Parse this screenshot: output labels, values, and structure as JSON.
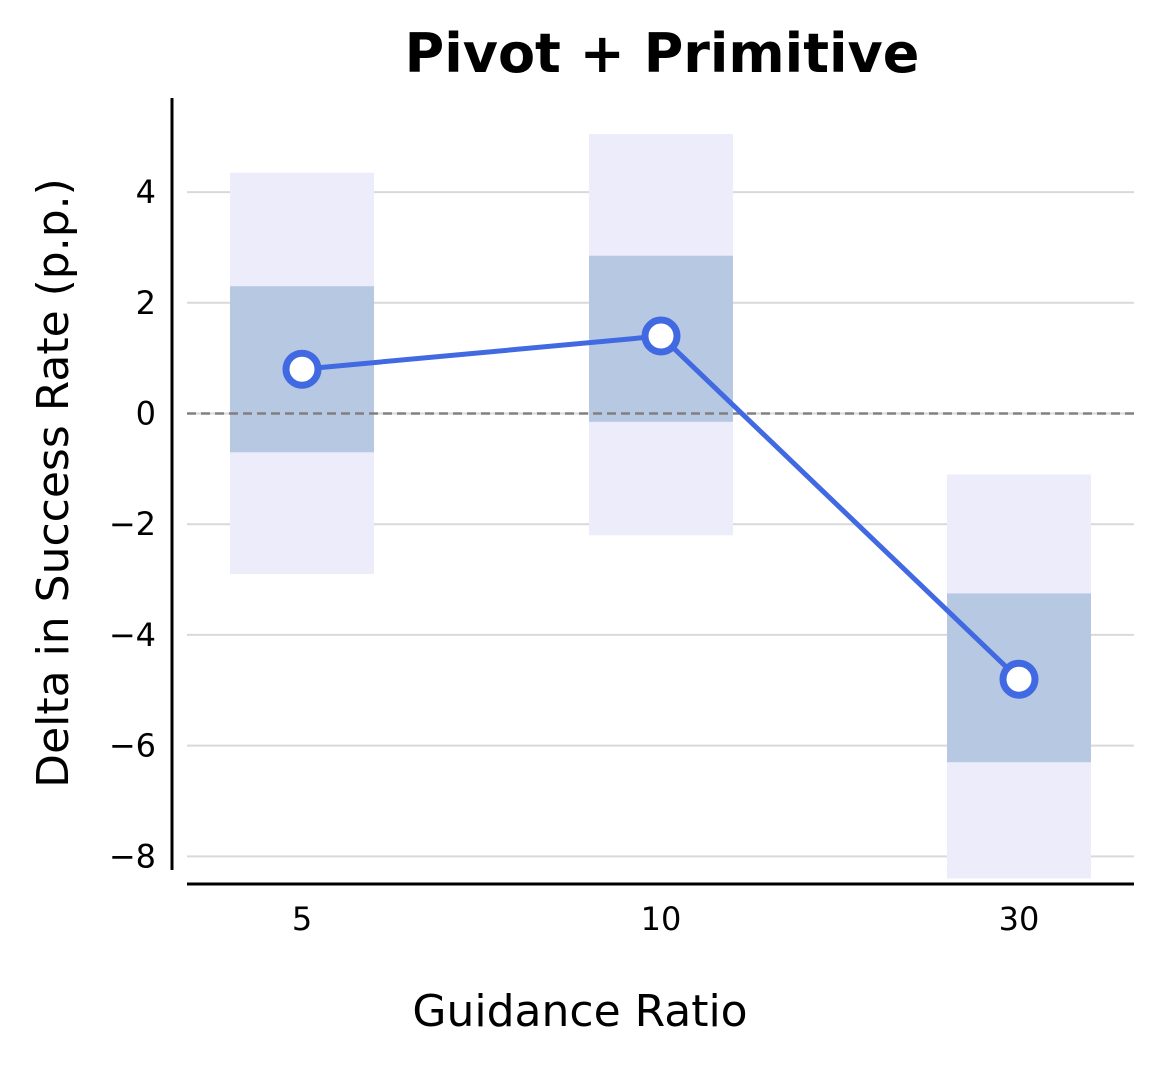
{
  "chart_data": {
    "type": "line",
    "title": "Pivot + Primitive",
    "xlabel": "Guidance Ratio",
    "ylabel": "Delta in Success Rate (p.p.)",
    "categories": [
      "5",
      "10",
      "30"
    ],
    "values": [
      0.8,
      1.4,
      -4.8
    ],
    "inner_band": [
      [
        -0.7,
        2.3
      ],
      [
        -0.15,
        2.85
      ],
      [
        -6.3,
        -3.25
      ]
    ],
    "outer_band": [
      [
        -2.9,
        4.35
      ],
      [
        -2.2,
        5.05
      ],
      [
        -8.4,
        -1.1
      ]
    ],
    "ylim": [
      -8.5,
      5.7
    ],
    "yticks": [
      4,
      2,
      0,
      -2,
      -4,
      -6,
      -8
    ],
    "ytick_labels": [
      "4",
      "2",
      "0",
      "−2",
      "−4",
      "−6",
      "−8"
    ],
    "reference_line": 0,
    "grid": "horizontal",
    "colors": {
      "line": "#4169e1",
      "inner_band": "#b7c8e2",
      "outer_band": "#ececfa",
      "grid": "#d9d9d9",
      "reference": "#808080"
    }
  }
}
